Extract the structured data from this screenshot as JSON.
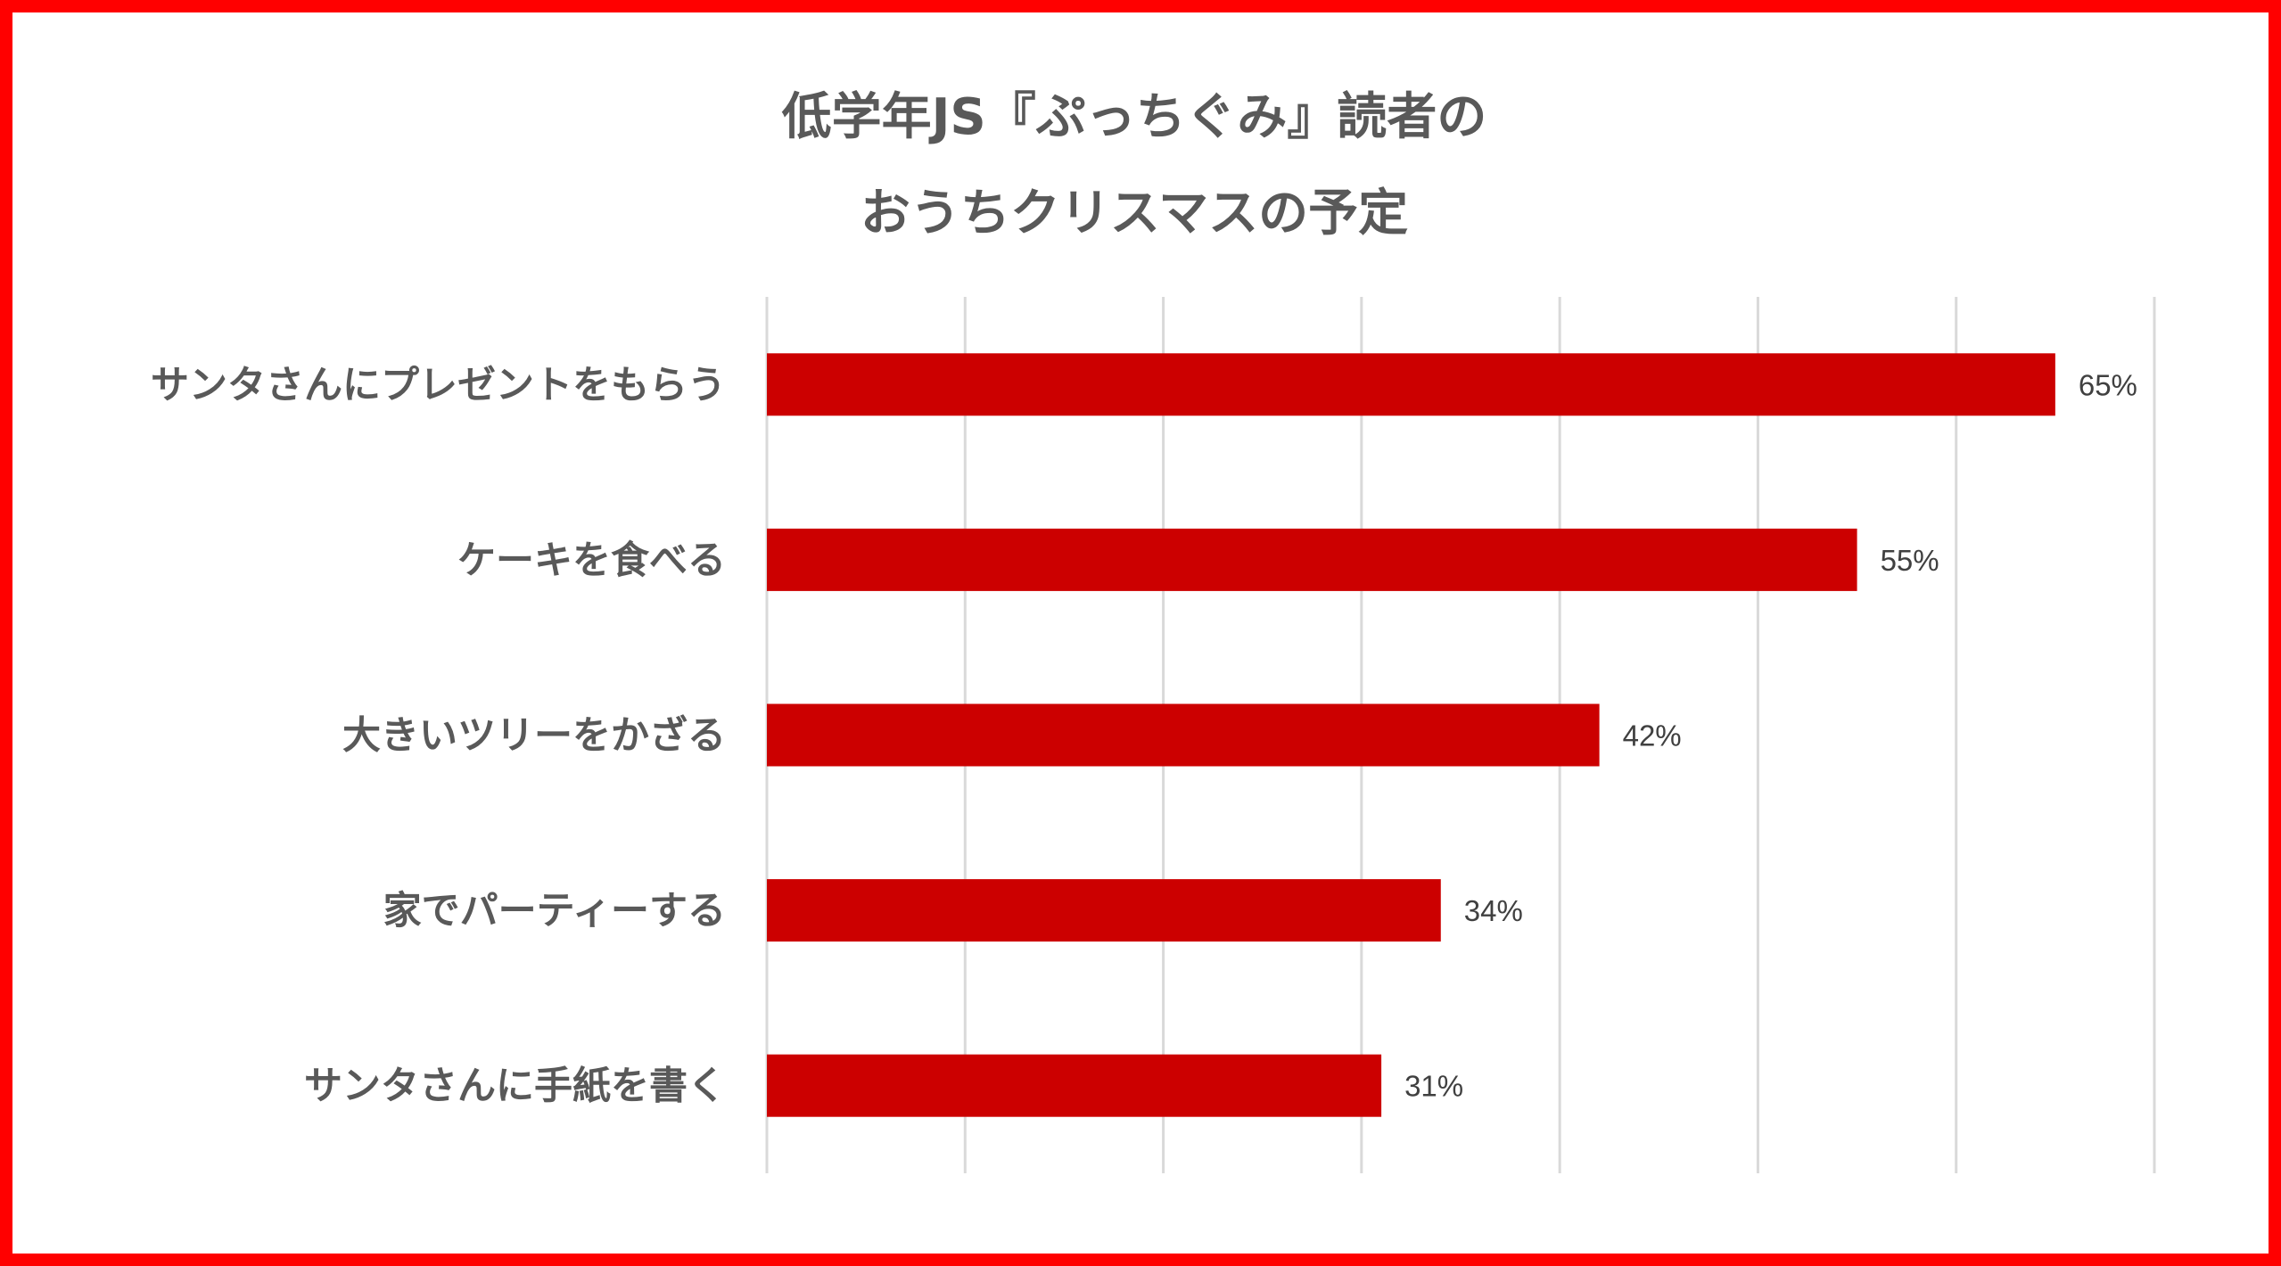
{
  "chart_data": {
    "type": "bar",
    "orientation": "horizontal",
    "title": [
      "低学年JS『ぷっちぐみ』読者の",
      "おうちクリスマスの予定"
    ],
    "categories": [
      "サンタさんにプレゼントをもらう",
      "ケーキを食べる",
      "大きいツリーをかざる",
      "家でパーティーする",
      "サンタさんに手紙を書く"
    ],
    "values": [
      65,
      55,
      42,
      34,
      31
    ],
    "value_labels": [
      "65%",
      "55%",
      "42%",
      "34%",
      "31%"
    ],
    "xlim": [
      0,
      70
    ],
    "grid": true,
    "legend": "none",
    "xlabel": "",
    "ylabel": ""
  },
  "colors": {
    "bar": "#cc0000",
    "frame": "#ff0000",
    "grid": "#d9d9d9",
    "text": "#595959"
  }
}
